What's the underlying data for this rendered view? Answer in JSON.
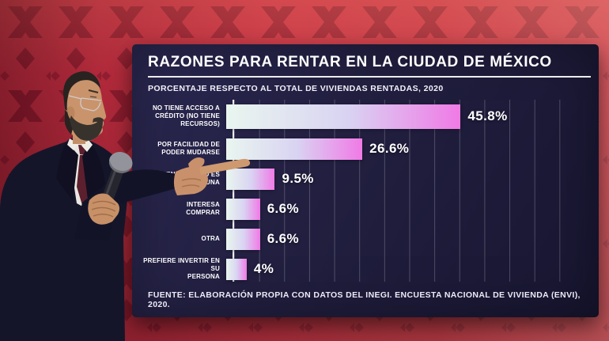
{
  "chart_data": {
    "type": "bar",
    "orientation": "horizontal",
    "title": "RAZONES PARA RENTAR EN LA CIUDAD DE MÉXICO",
    "subtitle": "PORCENTAJE RESPECTO AL TOTAL DE VIVIENDAS RENTADAS, 2020",
    "categories": [
      "NO TIENE ACCESO A\nCRÉDITO (NO TIENE\nRECURSOS)",
      "POR FACILIDAD DE\nPODER MUDARSE",
      "LA MENSUALIDAD ES\nMENOR QUE UNA",
      "INTERESA\nCOMPRAR",
      "OTRA",
      "PREFIERE INVERTIR EN SU\nPERSONA"
    ],
    "values": [
      45.8,
      26.6,
      9.5,
      6.6,
      6.6,
      4
    ],
    "value_labels": [
      "45.8%",
      "26.6%",
      "9.5%",
      "6.6%",
      "6.6%",
      "4%"
    ],
    "xlim": [
      0,
      70
    ],
    "grid_step": 5,
    "grid": true,
    "legend": false,
    "source": "FUENTE: ELABORACIÓN PROPIA CON DATOS DEL INEGI. ENCUESTA NACIONAL DE VIVIENDA (ENVI), 2020."
  },
  "colors": {
    "board_bg": "#221f40",
    "backdrop_red": "#c12f42",
    "pattern_maroon": "#8c1b30",
    "bar_gradient_start": "#e9f6ef",
    "bar_gradient_mid": "#d9d3f2",
    "bar_gradient_end": "#f07ae6",
    "gridline": "rgba(255,255,255,0.22)",
    "text": "#ffffff",
    "mic_band_green": "#3db360"
  }
}
